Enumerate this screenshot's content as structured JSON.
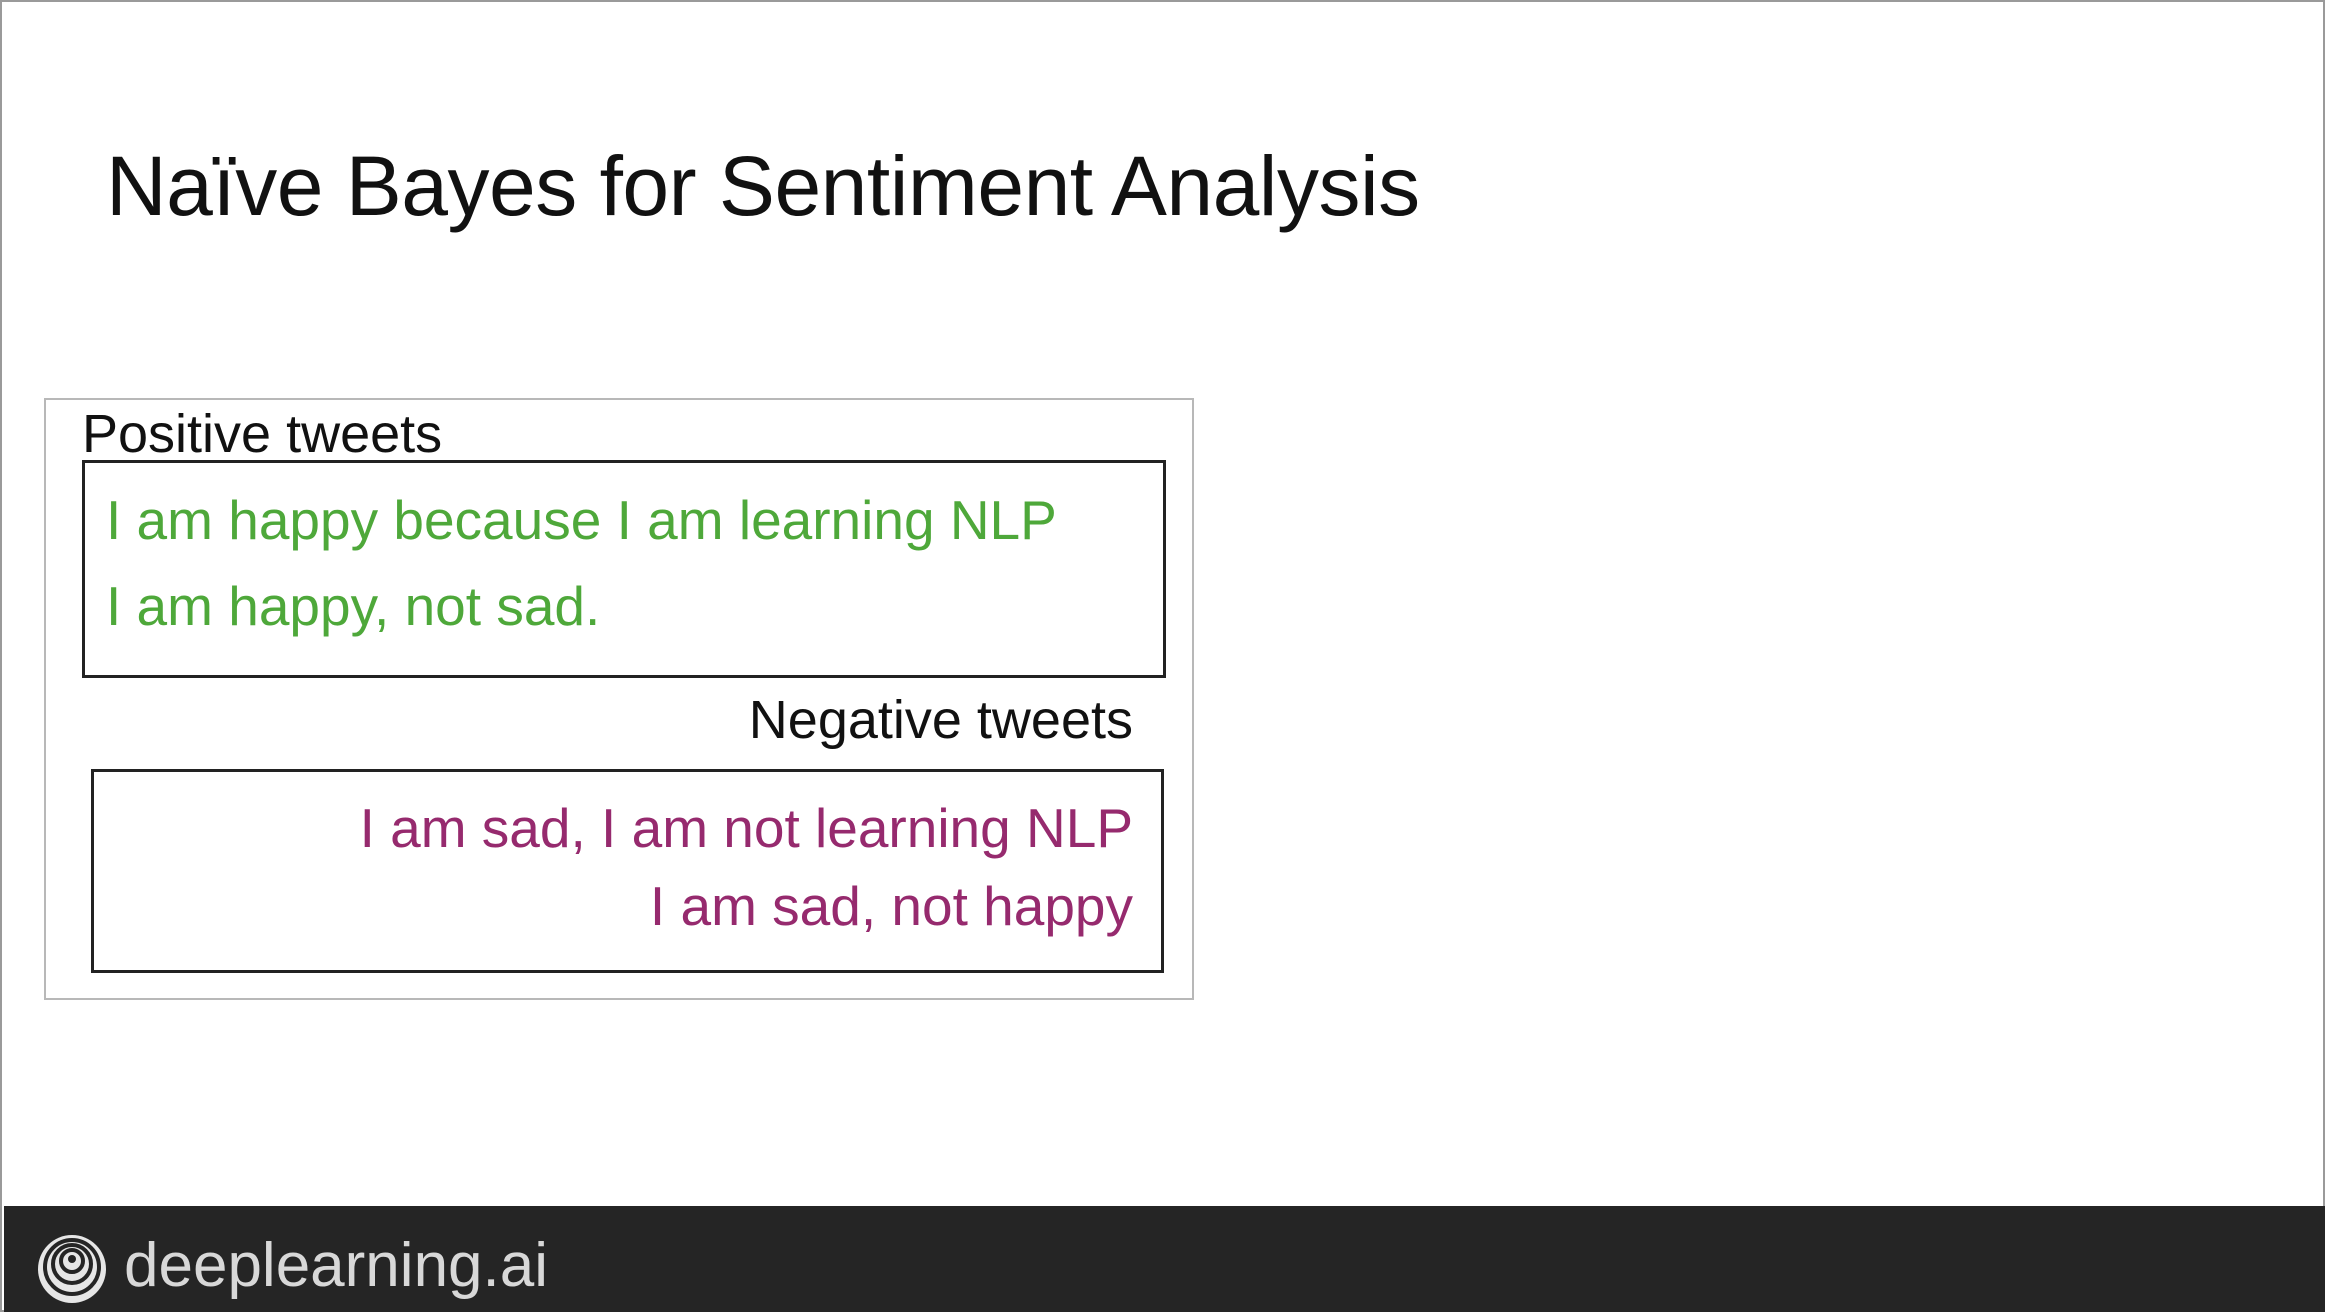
{
  "slide": {
    "title": "Naïve Bayes for Sentiment Analysis"
  },
  "positive": {
    "heading": "Positive tweets",
    "color": "#4ea83a",
    "tweets": [
      "I am happy because I am learning NLP",
      "I am happy, not sad."
    ]
  },
  "negative": {
    "heading": "Negative  tweets",
    "color": "#962a6e",
    "tweets": [
      "I am sad, I am not learning NLP",
      "I am sad, not happy"
    ]
  },
  "footer": {
    "brand": "deeplearning.ai",
    "logo_icon": "deeplearning-spiral-logo-icon"
  }
}
